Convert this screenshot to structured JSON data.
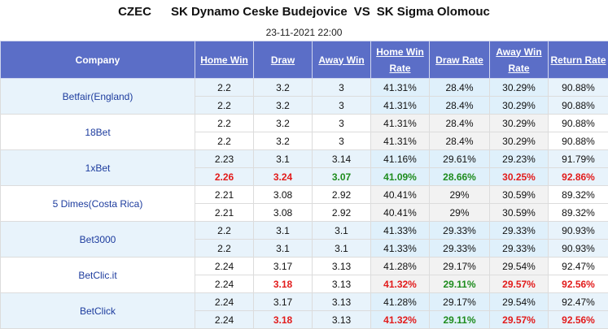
{
  "header": {
    "league": "CZEC",
    "home_team": "SK Dynamo Ceske Budejovice",
    "vs": "VS",
    "away_team": "SK Sigma Olomouc",
    "datetime": "23-11-2021 22:00"
  },
  "columns": {
    "company": "Company",
    "home_win": "Home Win",
    "draw": "Draw",
    "away_win": "Away Win",
    "home_win_rate_1": "Home Win",
    "home_win_rate_2": "Rate",
    "draw_rate": "Draw Rate",
    "away_win_rate_1": "Away Win",
    "away_win_rate_2": "Rate",
    "return_rate": "Return Rate"
  },
  "rows": [
    {
      "company": "Betfair(England)",
      "r1": [
        "2.2",
        "3.2",
        "3",
        "41.31%",
        "28.4%",
        "30.29%",
        "90.88%"
      ],
      "r2": [
        "2.2",
        "3.2",
        "3",
        "41.31%",
        "28.4%",
        "30.29%",
        "90.88%"
      ]
    },
    {
      "company": "18Bet",
      "r1": [
        "2.2",
        "3.2",
        "3",
        "41.31%",
        "28.4%",
        "30.29%",
        "90.88%"
      ],
      "r2": [
        "2.2",
        "3.2",
        "3",
        "41.31%",
        "28.4%",
        "30.29%",
        "90.88%"
      ]
    },
    {
      "company": "1xBet",
      "r1": [
        "2.23",
        "3.1",
        "3.14",
        "41.16%",
        "29.61%",
        "29.23%",
        "91.79%"
      ],
      "r2": [
        "2.26",
        "3.24",
        "3.07",
        "41.09%",
        "28.66%",
        "30.25%",
        "92.86%"
      ]
    },
    {
      "company": "5 Dimes(Costa Rica)",
      "r1": [
        "2.21",
        "3.08",
        "2.92",
        "40.41%",
        "29%",
        "30.59%",
        "89.32%"
      ],
      "r2": [
        "2.21",
        "3.08",
        "2.92",
        "40.41%",
        "29%",
        "30.59%",
        "89.32%"
      ]
    },
    {
      "company": "Bet3000",
      "r1": [
        "2.2",
        "3.1",
        "3.1",
        "41.33%",
        "29.33%",
        "29.33%",
        "90.93%"
      ],
      "r2": [
        "2.2",
        "3.1",
        "3.1",
        "41.33%",
        "29.33%",
        "29.33%",
        "90.93%"
      ]
    },
    {
      "company": "BetClic.it",
      "r1": [
        "2.24",
        "3.17",
        "3.13",
        "41.28%",
        "29.17%",
        "29.54%",
        "92.47%"
      ],
      "r2": [
        "2.24",
        "3.18",
        "3.13",
        "41.32%",
        "29.11%",
        "29.57%",
        "92.56%"
      ]
    },
    {
      "company": "BetClick",
      "r1": [
        "2.24",
        "3.17",
        "3.13",
        "41.28%",
        "29.17%",
        "29.54%",
        "92.47%"
      ],
      "r2": [
        "2.24",
        "3.18",
        "3.13",
        "41.32%",
        "29.11%",
        "29.57%",
        "92.56%"
      ]
    }
  ]
}
